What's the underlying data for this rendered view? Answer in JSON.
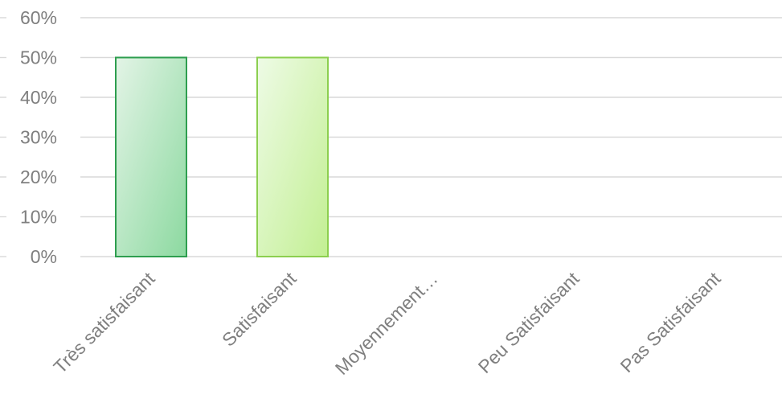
{
  "chart_data": {
    "type": "bar",
    "categories": [
      "Très satisfaisant",
      "Satisfaisant",
      "Moyennement…",
      "Peu Satisfaisant",
      "Pas Satisfaisant"
    ],
    "values": [
      50,
      50,
      0,
      0,
      0
    ],
    "ylim": [
      0,
      60
    ],
    "yticks": [
      0,
      10,
      20,
      30,
      40,
      50,
      60
    ],
    "ytick_labels": [
      "0%",
      "10%",
      "20%",
      "30%",
      "40%",
      "50%",
      "60%"
    ],
    "grid": true,
    "legend": "none",
    "colors": {
      "bar_1_fill_start": "#e3f4e6",
      "bar_1_fill_end": "#8cd9a0",
      "bar_1_stroke": "#2e9e4f",
      "bar_2_fill_start": "#eefbe6",
      "bar_2_fill_end": "#c2ef92",
      "bar_2_stroke": "#8ccf4f"
    }
  }
}
